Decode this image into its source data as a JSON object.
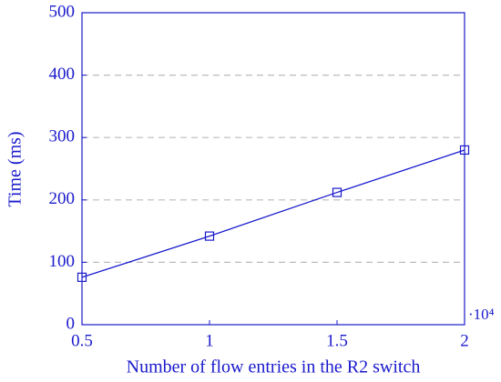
{
  "chart_data": {
    "type": "line",
    "x_label": "Number of flow entries in the R2 switch",
    "y_label": "Time (ms)",
    "x_scale_label": "·10⁴",
    "x": [
      0.5,
      1,
      1.5,
      2
    ],
    "series": [
      {
        "color": "#1a1acc",
        "values": [
          76,
          142,
          212,
          280
        ]
      }
    ],
    "xlim": [
      0.5,
      2
    ],
    "xticks": [
      0.5,
      1,
      1.5,
      2
    ],
    "ylim": [
      0,
      500
    ],
    "yticks": [
      0,
      100,
      200,
      300,
      400,
      500
    ],
    "grid": true
  }
}
